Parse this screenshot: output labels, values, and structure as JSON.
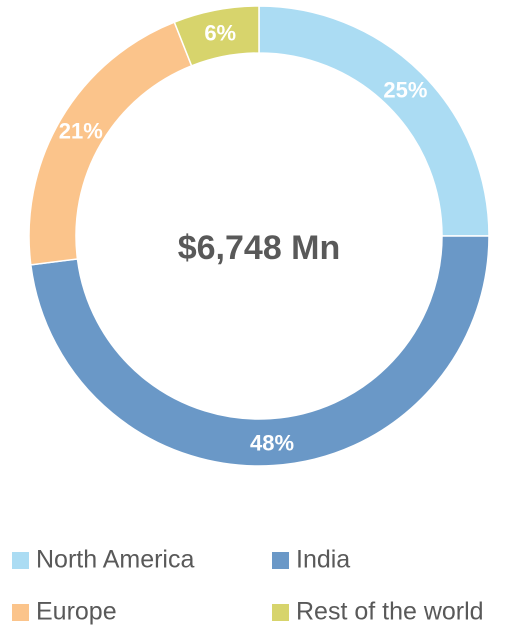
{
  "chart_data": {
    "type": "donut",
    "annotation": "$6,748 Mn",
    "categories": [
      "North America",
      "India",
      "Europe",
      "Rest of the world"
    ],
    "values": [
      25,
      48,
      21,
      6
    ],
    "value_labels": [
      "25%",
      "48%",
      "21%",
      "6%"
    ],
    "colors": [
      "#abdcf3",
      "#6a98c7",
      "#fbc48b",
      "#d7d46c"
    ],
    "legend": "bottom"
  }
}
